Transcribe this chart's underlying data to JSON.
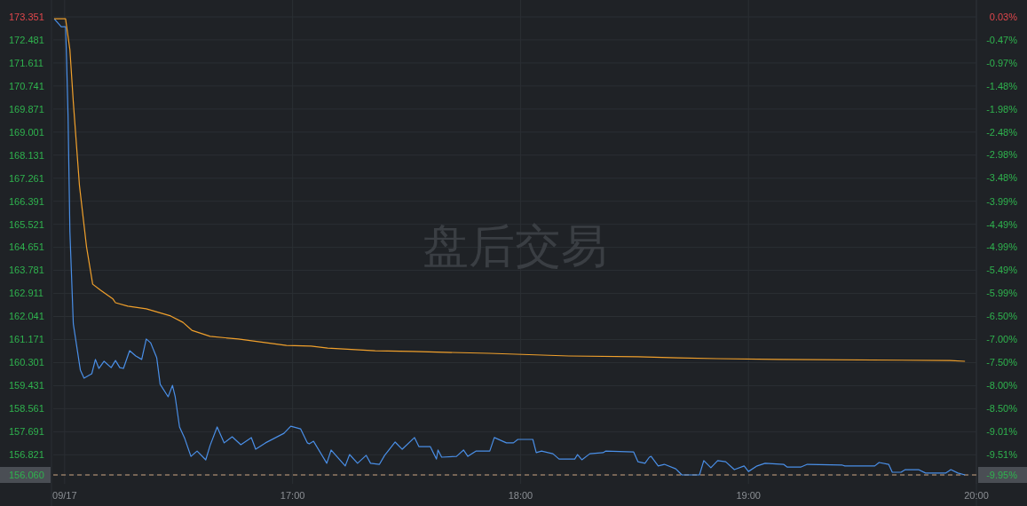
{
  "chart_data": {
    "type": "line",
    "annotations": [
      "盘后交易"
    ],
    "xlim": [
      15.95,
      20.0
    ],
    "xticks": [
      {
        "value": 16,
        "label": "09/17"
      },
      {
        "value": 17,
        "label": "17:00"
      },
      {
        "value": 18,
        "label": "18:00"
      },
      {
        "value": 19,
        "label": "19:00"
      },
      {
        "value": 20,
        "label": "20:00"
      }
    ],
    "ylim": [
      156.06,
      173.351
    ],
    "yticks": [
      173.351,
      172.481,
      171.611,
      170.741,
      169.871,
      169.001,
      168.131,
      167.261,
      166.391,
      165.521,
      164.651,
      163.781,
      162.911,
      162.041,
      161.171,
      160.301,
      159.431,
      158.561,
      157.691,
      156.821,
      {
        "value": 156.06,
        "label": "156.060"
      }
    ],
    "y2lim": [
      -9.95,
      0.03
    ],
    "y2ticks": [
      {
        "value": 0.03,
        "label": "0.03%"
      },
      {
        "value": -0.47,
        "label": "-0.47%"
      },
      {
        "value": -0.97,
        "label": "-0.97%"
      },
      {
        "value": -1.48,
        "label": "-1.48%"
      },
      {
        "value": -1.98,
        "label": "-1.98%"
      },
      {
        "value": -2.48,
        "label": "-2.48%"
      },
      {
        "value": -2.98,
        "label": "-2.98%"
      },
      {
        "value": -3.48,
        "label": "-3.48%"
      },
      {
        "value": -3.99,
        "label": "-3.99%"
      },
      {
        "value": -4.49,
        "label": "-4.49%"
      },
      {
        "value": -4.99,
        "label": "-4.99%"
      },
      {
        "value": -5.49,
        "label": "-5.49%"
      },
      {
        "value": -5.99,
        "label": "-5.99%"
      },
      {
        "value": -6.5,
        "label": "-6.50%"
      },
      {
        "value": -7.0,
        "label": "-7.00%"
      },
      {
        "value": -7.5,
        "label": "-7.50%"
      },
      {
        "value": -8.0,
        "label": "-8.00%"
      },
      {
        "value": -8.5,
        "label": "-8.50%"
      },
      {
        "value": -9.01,
        "label": "-9.01%"
      },
      {
        "value": -9.51,
        "label": "-9.51%"
      },
      {
        "value": -9.95,
        "label": "-9.95%"
      }
    ],
    "grid": true,
    "ref_lines": [
      {
        "axis": "y",
        "value": 156.06,
        "color": "#c9a27e",
        "line_style": "dashed"
      }
    ],
    "series": [
      {
        "color": "#4a8fe7",
        "x": [
          15.954,
          15.985,
          16.004,
          16.008,
          16.015,
          16.023,
          16.038,
          16.069,
          16.085,
          16.119,
          16.135,
          16.15,
          16.173,
          16.204,
          16.223,
          16.242,
          16.258,
          16.285,
          16.312,
          16.338,
          16.358,
          16.377,
          16.404,
          16.419,
          16.454,
          16.473,
          16.485,
          16.504,
          16.527,
          16.554,
          16.581,
          16.619,
          16.638,
          16.669,
          16.7,
          16.735,
          16.773,
          16.819,
          16.838,
          16.881,
          16.962,
          16.992,
          17.035,
          17.065,
          17.073,
          17.092,
          17.15,
          17.169,
          17.231,
          17.25,
          17.285,
          17.323,
          17.342,
          17.381,
          17.404,
          17.45,
          17.481,
          17.535,
          17.554,
          17.604,
          17.631,
          17.638,
          17.654,
          17.719,
          17.75,
          17.769,
          17.804,
          17.865,
          17.885,
          17.938,
          17.969,
          17.988,
          18.054,
          18.069,
          18.092,
          18.142,
          18.169,
          18.238,
          18.25,
          18.269,
          18.304,
          18.362,
          18.373,
          18.496,
          18.515,
          18.546,
          18.565,
          18.573,
          18.604,
          18.631,
          18.681,
          18.708,
          18.785,
          18.804,
          18.835,
          18.865,
          18.9,
          18.938,
          18.981,
          19.0,
          19.038,
          19.073,
          19.154,
          19.169,
          19.231,
          19.258,
          19.412,
          19.423,
          19.554,
          19.573,
          19.615,
          19.631,
          19.669,
          19.688,
          19.746,
          19.777,
          19.865,
          19.888,
          19.919,
          19.95
        ],
        "values": [
          173.28,
          172.98,
          172.98,
          171.88,
          169.56,
          165.24,
          161.76,
          160.01,
          159.71,
          159.88,
          160.42,
          160.08,
          160.35,
          160.11,
          160.38,
          160.11,
          160.08,
          160.75,
          160.55,
          160.42,
          161.19,
          161.05,
          160.48,
          159.48,
          159.01,
          159.44,
          159.01,
          157.87,
          157.43,
          156.76,
          156.96,
          156.63,
          157.17,
          157.87,
          157.27,
          157.5,
          157.2,
          157.47,
          157.03,
          157.27,
          157.63,
          157.9,
          157.8,
          157.27,
          157.23,
          157.33,
          156.5,
          157.0,
          156.4,
          156.83,
          156.5,
          156.8,
          156.5,
          156.46,
          156.8,
          157.3,
          157.03,
          157.47,
          157.13,
          157.13,
          156.66,
          157.0,
          156.73,
          156.76,
          157.0,
          156.76,
          156.96,
          156.96,
          157.47,
          157.27,
          157.27,
          157.4,
          157.4,
          156.9,
          156.96,
          156.86,
          156.66,
          156.66,
          156.83,
          156.63,
          156.86,
          156.9,
          156.96,
          156.93,
          156.56,
          156.5,
          156.73,
          156.76,
          156.4,
          156.46,
          156.29,
          156.06,
          156.06,
          156.6,
          156.33,
          156.6,
          156.56,
          156.26,
          156.4,
          156.19,
          156.4,
          156.5,
          156.46,
          156.36,
          156.36,
          156.46,
          156.43,
          156.4,
          156.4,
          156.53,
          156.46,
          156.16,
          156.16,
          156.26,
          156.26,
          156.13,
          156.13,
          156.26,
          156.13,
          156.06
        ]
      },
      {
        "color": "#f0a02c",
        "x": [
          15.954,
          16.004,
          16.023,
          16.038,
          16.065,
          16.096,
          16.123,
          16.158,
          16.212,
          16.223,
          16.277,
          16.358,
          16.465,
          16.519,
          16.558,
          16.638,
          16.762,
          16.973,
          17.081,
          17.154,
          17.362,
          17.527,
          17.862,
          18.212,
          18.515,
          18.692,
          18.862,
          19.131,
          19.885,
          19.95
        ],
        "values": [
          173.28,
          173.28,
          172.11,
          170.13,
          166.98,
          164.67,
          163.26,
          163.03,
          162.7,
          162.56,
          162.43,
          162.33,
          162.06,
          161.82,
          161.52,
          161.29,
          161.19,
          160.95,
          160.92,
          160.85,
          160.75,
          160.72,
          160.65,
          160.55,
          160.52,
          160.48,
          160.45,
          160.42,
          160.38,
          160.35
        ]
      }
    ]
  }
}
